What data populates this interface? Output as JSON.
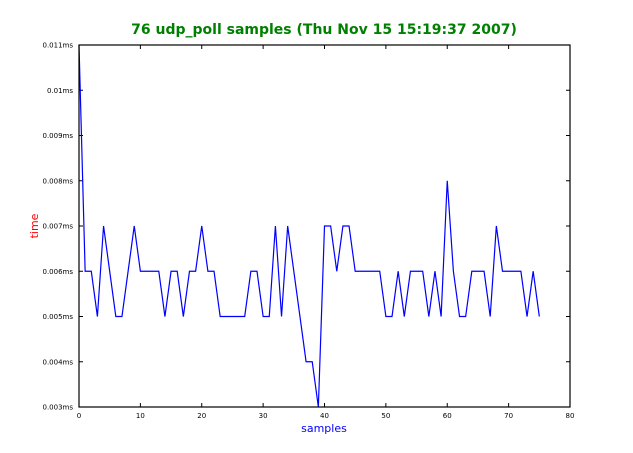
{
  "chart_data": {
    "type": "line",
    "title": "76 udp_poll samples (Thu Nov 15 15:19:37 2007)",
    "xlabel": "samples",
    "ylabel": "time",
    "xlim": [
      0,
      80
    ],
    "ylim": [
      0.003,
      0.011
    ],
    "x_ticks": [
      0,
      10,
      20,
      30,
      40,
      50,
      60,
      70,
      80
    ],
    "x_tick_labels": [
      "0",
      "10",
      "20",
      "30",
      "40",
      "50",
      "60",
      "70",
      "80"
    ],
    "y_ticks": [
      0.003,
      0.004,
      0.005,
      0.006,
      0.007,
      0.008,
      0.009,
      0.01,
      0.011
    ],
    "y_tick_labels": [
      "0.003ms",
      "0.004ms",
      "0.005ms",
      "0.006ms",
      "0.007ms",
      "0.008ms",
      "0.009ms",
      "0.01ms",
      "0.011ms"
    ],
    "grid": false,
    "legend": "none",
    "colors": {
      "title": "#008000",
      "xlabel": "#0000ff",
      "ylabel": "#ff0000",
      "line": "#0000ff",
      "axes": "#000000"
    },
    "series": [
      {
        "x": [
          0,
          1,
          2,
          3,
          4,
          5,
          6,
          7,
          8,
          9,
          10,
          11,
          12,
          13,
          14,
          15,
          16,
          17,
          18,
          19,
          20,
          21,
          22,
          23,
          24,
          25,
          26,
          27,
          28,
          29,
          30,
          31,
          32,
          33,
          34,
          35,
          36,
          37,
          38,
          39,
          40,
          41,
          42,
          43,
          44,
          45,
          46,
          47,
          48,
          49,
          50,
          51,
          52,
          53,
          54,
          55,
          56,
          57,
          58,
          59,
          60,
          61,
          62,
          63,
          64,
          65,
          66,
          67,
          68,
          69,
          70,
          71,
          72,
          73,
          74,
          75
        ],
        "values": [
          0.011,
          0.006,
          0.006,
          0.005,
          0.007,
          0.006,
          0.005,
          0.005,
          0.006,
          0.007,
          0.006,
          0.006,
          0.006,
          0.006,
          0.005,
          0.006,
          0.006,
          0.005,
          0.006,
          0.006,
          0.007,
          0.006,
          0.006,
          0.005,
          0.005,
          0.005,
          0.005,
          0.005,
          0.006,
          0.006,
          0.005,
          0.005,
          0.007,
          0.005,
          0.007,
          0.006,
          0.005,
          0.004,
          0.004,
          0.003,
          0.007,
          0.007,
          0.006,
          0.007,
          0.007,
          0.006,
          0.006,
          0.006,
          0.006,
          0.006,
          0.005,
          0.005,
          0.006,
          0.005,
          0.006,
          0.006,
          0.006,
          0.005,
          0.006,
          0.005,
          0.008,
          0.006,
          0.005,
          0.005,
          0.006,
          0.006,
          0.006,
          0.005,
          0.007,
          0.006,
          0.006,
          0.006,
          0.006,
          0.005,
          0.006,
          0.005
        ]
      }
    ]
  }
}
